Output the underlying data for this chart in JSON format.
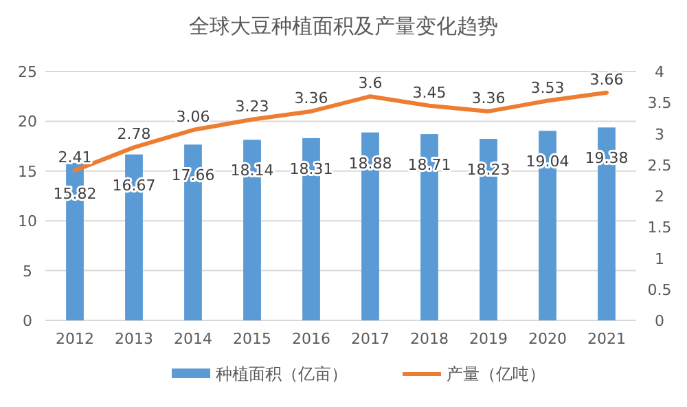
{
  "chart_data": {
    "type": "bar",
    "title": "全球大豆种植面积及产量变化趋势",
    "categories": [
      "2012",
      "2013",
      "2014",
      "2015",
      "2016",
      "2017",
      "2018",
      "2019",
      "2020",
      "2021"
    ],
    "series": [
      {
        "name": "种植面积（亿亩）",
        "color": "#5b9bd5",
        "values": [
          15.82,
          16.67,
          17.66,
          18.14,
          18.31,
          18.88,
          18.71,
          18.23,
          19.04,
          19.38
        ]
      },
      {
        "name": "产量（亿吨）",
        "type": "line",
        "axis": "y2",
        "color": "#ed7d31",
        "values": [
          2.41,
          2.78,
          3.06,
          3.23,
          3.36,
          3.6,
          3.45,
          3.36,
          3.53,
          3.66
        ]
      }
    ],
    "ylim": [
      0,
      25
    ],
    "yticks": [
      0,
      5,
      10,
      15,
      20,
      25
    ],
    "y2lim": [
      0,
      4
    ],
    "y2ticks": [
      0,
      0.5,
      1,
      1.5,
      2,
      2.5,
      3,
      3.5,
      4
    ],
    "grid": "y",
    "legend": "bottom",
    "data_labels": true
  }
}
